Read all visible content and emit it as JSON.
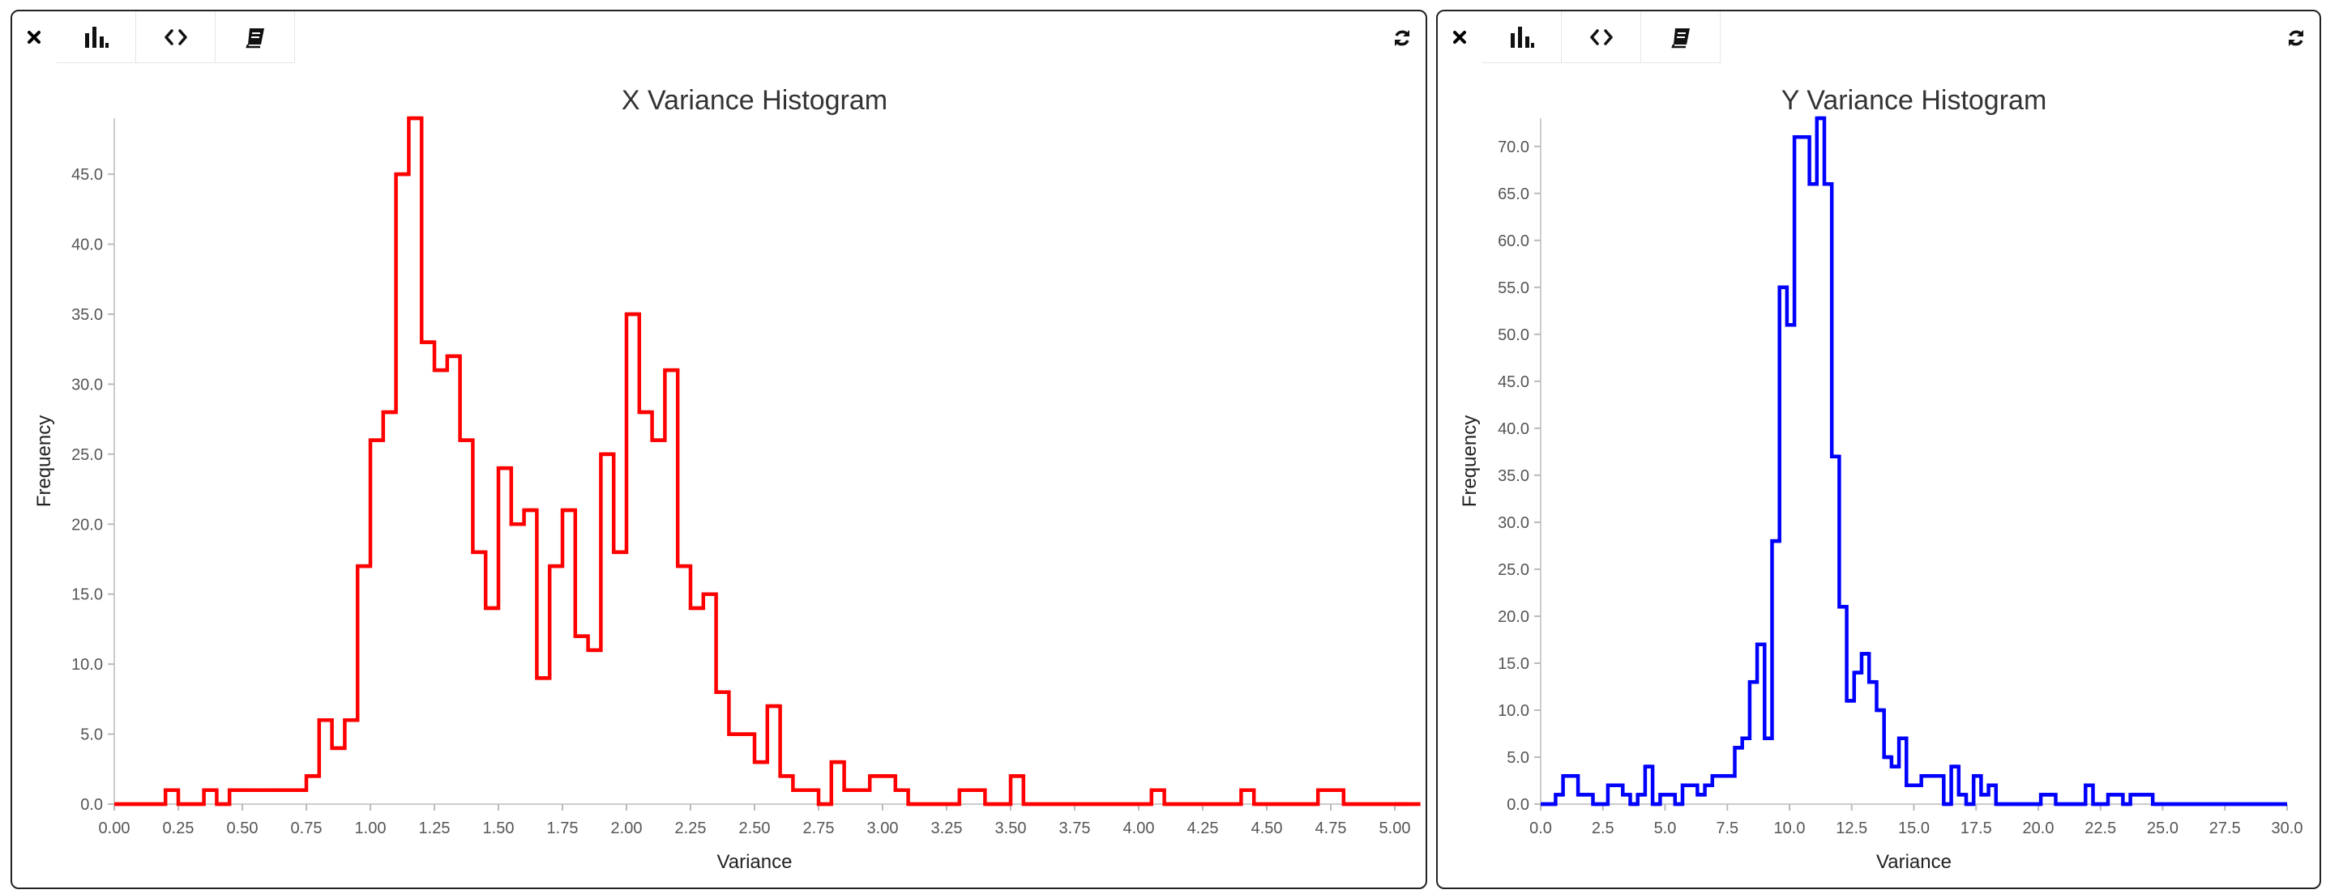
{
  "panels": [
    {
      "id": "x",
      "toolbar": [
        "close-icon",
        "bar-chart-icon",
        "code-icon",
        "book-icon"
      ],
      "refresh_icon": "refresh-icon"
    },
    {
      "id": "y",
      "toolbar": [
        "close-icon",
        "bar-chart-icon",
        "code-icon",
        "book-icon"
      ],
      "refresh_icon": "refresh-icon"
    }
  ],
  "chart_data": [
    {
      "type": "bar",
      "style": "step-histogram",
      "title": "X Variance Histogram",
      "xlabel": "Variance",
      "ylabel": "Frequency",
      "color": "#ff0000",
      "xlim": [
        0,
        5
      ],
      "ylim": [
        0,
        49
      ],
      "bin_width": 0.05,
      "x_ticks": [
        "0.00",
        "0.25",
        "0.50",
        "0.75",
        "1.00",
        "1.25",
        "1.50",
        "1.75",
        "2.00",
        "2.25",
        "2.50",
        "2.75",
        "3.00",
        "3.25",
        "3.50",
        "3.75",
        "4.00",
        "4.25",
        "4.50",
        "4.75",
        "5.00"
      ],
      "y_ticks": [
        "0.0",
        "5.0",
        "10.0",
        "15.0",
        "20.0",
        "25.0",
        "30.0",
        "35.0",
        "40.0",
        "45.0"
      ],
      "values": [
        0,
        0,
        0,
        0,
        1,
        0,
        0,
        1,
        0,
        1,
        1,
        1,
        1,
        1,
        1,
        2,
        6,
        4,
        6,
        17,
        26,
        28,
        45,
        49,
        33,
        31,
        32,
        26,
        18,
        14,
        24,
        20,
        21,
        9,
        17,
        21,
        12,
        11,
        25,
        18,
        35,
        28,
        26,
        31,
        17,
        14,
        15,
        8,
        5,
        5,
        3,
        7,
        2,
        1,
        1,
        0,
        3,
        1,
        1,
        2,
        2,
        1,
        0,
        0,
        0,
        0,
        1,
        1,
        0,
        0,
        2,
        0,
        0,
        0,
        0,
        0,
        0,
        0,
        0,
        0,
        0,
        1,
        0,
        0,
        0,
        0,
        0,
        0,
        1,
        0,
        0,
        0,
        0,
        0,
        1,
        1,
        0,
        0,
        0,
        0,
        0,
        0,
        0
      ]
    },
    {
      "type": "bar",
      "style": "step-histogram",
      "title": "Y Variance Histogram",
      "xlabel": "Variance",
      "ylabel": "Frequency",
      "color": "#0000ff",
      "xlim": [
        0,
        30
      ],
      "ylim": [
        0,
        73
      ],
      "bin_width": 0.3,
      "x_ticks": [
        "0.0",
        "2.5",
        "5.0",
        "7.5",
        "10.0",
        "12.5",
        "15.0",
        "17.5",
        "20.0",
        "22.5",
        "25.0",
        "27.5",
        "30.0"
      ],
      "y_ticks": [
        "0.0",
        "5.0",
        "10.0",
        "15.0",
        "20.0",
        "25.0",
        "30.0",
        "35.0",
        "40.0",
        "45.0",
        "50.0",
        "55.0",
        "60.0",
        "65.0",
        "70.0"
      ],
      "values": [
        0,
        0,
        1,
        3,
        3,
        1,
        1,
        0,
        0,
        2,
        2,
        1,
        0,
        1,
        4,
        0,
        1,
        1,
        0,
        2,
        2,
        1,
        2,
        3,
        3,
        3,
        6,
        7,
        13,
        17,
        7,
        28,
        55,
        51,
        71,
        71,
        66,
        73,
        66,
        37,
        21,
        11,
        14,
        16,
        13,
        10,
        5,
        4,
        7,
        2,
        2,
        3,
        3,
        3,
        0,
        4,
        1,
        0,
        3,
        1,
        2,
        0,
        0,
        0,
        0,
        0,
        0,
        1,
        1,
        0,
        0,
        0,
        0,
        2,
        0,
        0,
        1,
        1,
        0,
        1,
        1,
        1,
        0,
        0,
        0,
        0,
        0,
        0,
        0,
        0,
        0,
        0,
        0,
        0,
        0,
        0,
        0,
        0,
        0,
        0,
        0
      ]
    }
  ]
}
